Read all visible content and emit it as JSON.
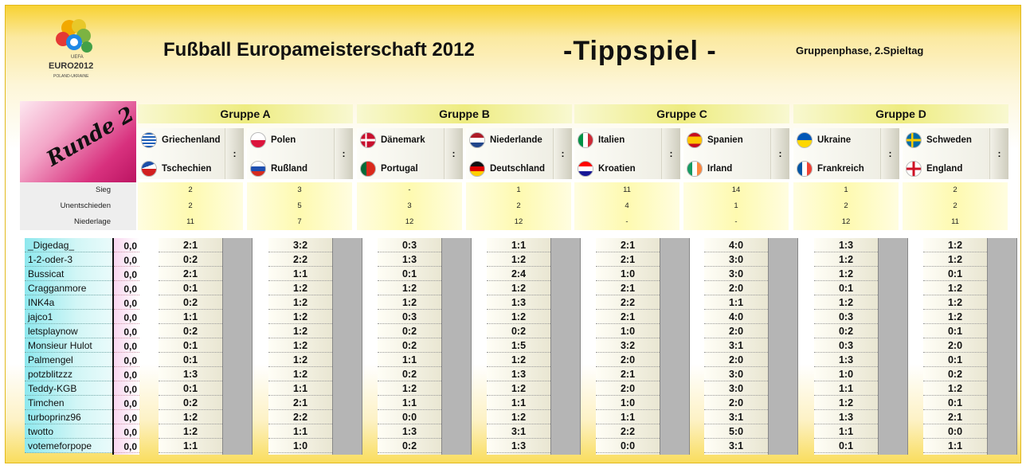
{
  "header": {
    "title": "Fußball Europameisterschaft 2012",
    "tippspiel": "-Tippspiel -",
    "subtitle": "Gruppenphase, 2.Spieltag",
    "logo_text": "EURO2012",
    "logo_sub": "POLAND-UKRAINE",
    "logo_uefa": "UEFA"
  },
  "runde": "Runde 2",
  "groups": [
    "Gruppe A",
    "Gruppe B",
    "Gruppe C",
    "Gruppe D"
  ],
  "colon": ":",
  "matches": [
    {
      "home": "Griechenland",
      "away": "Tschechien",
      "home_flag": "flag-greece",
      "away_flag": "flag-czech"
    },
    {
      "home": "Polen",
      "away": "Rußland",
      "home_flag": "flag-poland",
      "away_flag": "flag-russia"
    },
    {
      "home": "Dänemark",
      "away": "Portugal",
      "home_flag": "flag-denmark",
      "away_flag": "flag-portugal"
    },
    {
      "home": "Niederlande",
      "away": "Deutschland",
      "home_flag": "flag-netherlands",
      "away_flag": "flag-germany"
    },
    {
      "home": "Italien",
      "away": "Kroatien",
      "home_flag": "flag-italy",
      "away_flag": "flag-croatia"
    },
    {
      "home": "Spanien",
      "away": "Irland",
      "home_flag": "flag-spain",
      "away_flag": "flag-ireland"
    },
    {
      "home": "Ukraine",
      "away": "Frankreich",
      "home_flag": "flag-ukraine",
      "away_flag": "flag-france"
    },
    {
      "home": "Schweden",
      "away": "England",
      "home_flag": "flag-sweden",
      "away_flag": "flag-england"
    }
  ],
  "stat_labels": [
    "Sieg",
    "Unentschieden",
    "Niederlage"
  ],
  "stats": [
    [
      "2",
      "2",
      "11"
    ],
    [
      "3",
      "5",
      "7"
    ],
    [
      "-",
      "3",
      "12"
    ],
    [
      "1",
      "2",
      "12"
    ],
    [
      "11",
      "4",
      "-"
    ],
    [
      "14",
      "1",
      "-"
    ],
    [
      "1",
      "2",
      "12"
    ],
    [
      "2",
      "2",
      "11"
    ]
  ],
  "players": [
    {
      "name": "_Digedag_",
      "points": "0,0",
      "tips": [
        "2:1",
        "3:2",
        "0:3",
        "1:1",
        "2:1",
        "4:0",
        "1:3",
        "1:2"
      ]
    },
    {
      "name": "1-2-oder-3",
      "points": "0,0",
      "tips": [
        "0:2",
        "2:2",
        "1:3",
        "1:2",
        "2:1",
        "3:0",
        "1:2",
        "1:2"
      ]
    },
    {
      "name": "Bussicat",
      "points": "0,0",
      "tips": [
        "2:1",
        "1:1",
        "0:1",
        "2:4",
        "1:0",
        "3:0",
        "1:2",
        "0:1"
      ]
    },
    {
      "name": "Cragganmore",
      "points": "0,0",
      "tips": [
        "0:1",
        "1:2",
        "1:2",
        "1:2",
        "2:1",
        "2:0",
        "0:1",
        "1:2"
      ]
    },
    {
      "name": "INK4a",
      "points": "0,0",
      "tips": [
        "0:2",
        "1:2",
        "1:2",
        "1:3",
        "2:2",
        "1:1",
        "1:2",
        "1:2"
      ]
    },
    {
      "name": "jajco1",
      "points": "0,0",
      "tips": [
        "1:1",
        "1:2",
        "0:3",
        "1:2",
        "2:1",
        "4:0",
        "0:3",
        "1:2"
      ]
    },
    {
      "name": "letsplaynow",
      "points": "0,0",
      "tips": [
        "0:2",
        "1:2",
        "0:2",
        "0:2",
        "1:0",
        "2:0",
        "0:2",
        "0:1"
      ]
    },
    {
      "name": "Monsieur Hulot",
      "points": "0,0",
      "tips": [
        "0:1",
        "1:2",
        "0:2",
        "1:5",
        "3:2",
        "3:1",
        "0:3",
        "2:0"
      ]
    },
    {
      "name": "Palmengel",
      "points": "0,0",
      "tips": [
        "0:1",
        "1:2",
        "1:1",
        "1:2",
        "2:0",
        "2:0",
        "1:3",
        "0:1"
      ]
    },
    {
      "name": "potzblitzzz",
      "points": "0,0",
      "tips": [
        "1:3",
        "1:2",
        "0:2",
        "1:3",
        "2:1",
        "3:0",
        "1:0",
        "0:2"
      ]
    },
    {
      "name": "Teddy-KGB",
      "points": "0,0",
      "tips": [
        "0:1",
        "1:1",
        "1:2",
        "1:2",
        "2:0",
        "3:0",
        "1:1",
        "1:2"
      ]
    },
    {
      "name": "Timchen",
      "points": "0,0",
      "tips": [
        "0:2",
        "2:1",
        "1:1",
        "1:1",
        "1:0",
        "2:0",
        "1:2",
        "0:1"
      ]
    },
    {
      "name": "turboprinz96",
      "points": "0,0",
      "tips": [
        "1:2",
        "2:2",
        "0:0",
        "1:2",
        "1:1",
        "3:1",
        "1:3",
        "2:1"
      ]
    },
    {
      "name": "twotto",
      "points": "0,0",
      "tips": [
        "1:2",
        "1:1",
        "1:3",
        "3:1",
        "2:2",
        "5:0",
        "1:1",
        "0:0"
      ]
    },
    {
      "name": "votemeforpope",
      "points": "0,0",
      "tips": [
        "1:1",
        "1:0",
        "0:2",
        "1:3",
        "0:0",
        "3:1",
        "0:1",
        "1:1"
      ]
    }
  ]
}
